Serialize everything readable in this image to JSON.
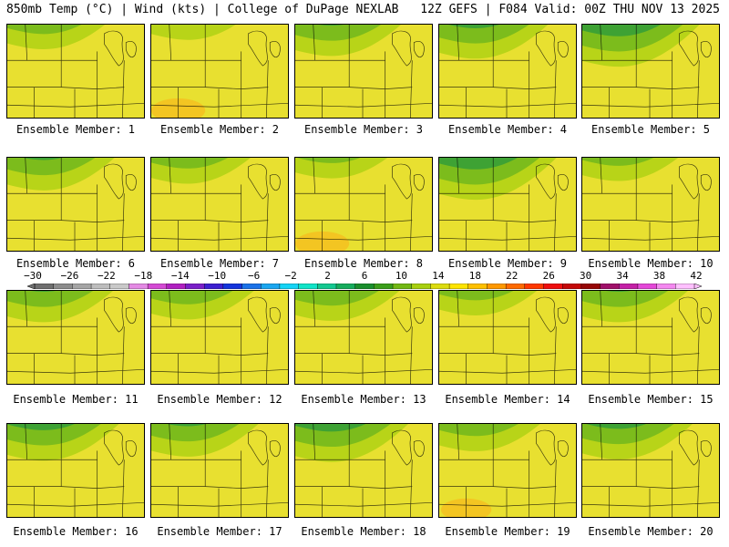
{
  "header": {
    "left": "850mb Temp (°C) | Wind (kts) | College of DuPage NEXLAB",
    "right": "12Z GEFS | F084 Valid: 00Z THU NOV 13 2025"
  },
  "panels": [
    {
      "label": "Ensemble Member: 1",
      "cold_extent": 0.45,
      "warm_extent": 0.6
    },
    {
      "label": "Ensemble Member: 2",
      "cold_extent": 0.35,
      "warm_extent": 0.75
    },
    {
      "label": "Ensemble Member: 3",
      "cold_extent": 0.55,
      "warm_extent": 0.55
    },
    {
      "label": "Ensemble Member: 4",
      "cold_extent": 0.6,
      "warm_extent": 0.55
    },
    {
      "label": "Ensemble Member: 5",
      "cold_extent": 0.7,
      "warm_extent": 0.45
    },
    {
      "label": "Ensemble Member: 6",
      "cold_extent": 0.55,
      "warm_extent": 0.5
    },
    {
      "label": "Ensemble Member: 7",
      "cold_extent": 0.45,
      "warm_extent": 0.55
    },
    {
      "label": "Ensemble Member: 8",
      "cold_extent": 0.45,
      "warm_extent": 0.75
    },
    {
      "label": "Ensemble Member: 9",
      "cold_extent": 0.7,
      "warm_extent": 0.45
    },
    {
      "label": "Ensemble Member: 10",
      "cold_extent": 0.4,
      "warm_extent": 0.55
    },
    {
      "label": "Ensemble Member: 11",
      "cold_extent": 0.55,
      "warm_extent": 0.55
    },
    {
      "label": "Ensemble Member: 12",
      "cold_extent": 0.5,
      "warm_extent": 0.55
    },
    {
      "label": "Ensemble Member: 13",
      "cold_extent": 0.5,
      "warm_extent": 0.5
    },
    {
      "label": "Ensemble Member: 14",
      "cold_extent": 0.45,
      "warm_extent": 0.6
    },
    {
      "label": "Ensemble Member: 15",
      "cold_extent": 0.55,
      "warm_extent": 0.55
    },
    {
      "label": "Ensemble Member: 16",
      "cold_extent": 0.6,
      "warm_extent": 0.45
    },
    {
      "label": "Ensemble Member: 17",
      "cold_extent": 0.55,
      "warm_extent": 0.5
    },
    {
      "label": "Ensemble Member: 18",
      "cold_extent": 0.6,
      "warm_extent": 0.4
    },
    {
      "label": "Ensemble Member: 19",
      "cold_extent": 0.55,
      "warm_extent": 0.7
    },
    {
      "label": "Ensemble Member: 20",
      "cold_extent": 0.6,
      "warm_extent": 0.5
    }
  ],
  "colorbar": {
    "tick_labels": [
      "−30",
      "−26",
      "−22",
      "−18",
      "−14",
      "−10",
      "−6",
      "−2",
      "2",
      "6",
      "10",
      "14",
      "18",
      "22",
      "26",
      "30",
      "34",
      "38",
      "42"
    ],
    "colors": [
      "#6f6f6f",
      "#8c8c8c",
      "#a5a5a5",
      "#bdbdbd",
      "#c9c9c9",
      "#e48ae4",
      "#d44ad4",
      "#b020c0",
      "#7a1fc8",
      "#3c1fd0",
      "#1434dc",
      "#1b72e8",
      "#1aa6f0",
      "#15d4f6",
      "#10e4c8",
      "#13c890",
      "#16ac5c",
      "#1a8e2c",
      "#3a9e1a",
      "#72b814",
      "#a8d010",
      "#dcdc10",
      "#ffe400",
      "#ffc000",
      "#ff9800",
      "#ff6a00",
      "#ff3800",
      "#ee0e0e",
      "#c40808",
      "#960606",
      "#a0106a",
      "#c420a6",
      "#e448d8",
      "#f488f0",
      "#ffc0ff"
    ]
  }
}
